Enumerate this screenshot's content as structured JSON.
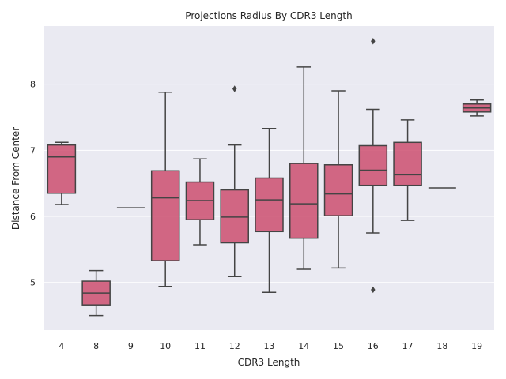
{
  "chart_data": {
    "type": "box",
    "title": "Projections Radius By CDR3 Length",
    "xlabel": "CDR3 Length",
    "ylabel": "Distance From Center",
    "ylim": [
      4.28,
      8.88
    ],
    "yticks": [
      5,
      6,
      7,
      8
    ],
    "grid": true,
    "colors": {
      "background": "#eaeaf2",
      "grid": "#ffffff",
      "box_fill": "#cc4f70",
      "box_edge": "#444444"
    },
    "categories": [
      "4",
      "8",
      "9",
      "10",
      "11",
      "12",
      "13",
      "14",
      "15",
      "16",
      "17",
      "18",
      "19"
    ],
    "boxes": [
      {
        "label": "4",
        "whislo": 6.18,
        "q1": 6.35,
        "med": 6.9,
        "q3": 7.08,
        "whishi": 7.12,
        "fliers": []
      },
      {
        "label": "8",
        "whislo": 4.5,
        "q1": 4.66,
        "med": 4.84,
        "q3": 5.02,
        "whishi": 5.18,
        "fliers": []
      },
      {
        "label": "9",
        "whislo": 6.13,
        "q1": 6.13,
        "med": 6.13,
        "q3": 6.13,
        "whishi": 6.13,
        "fliers": []
      },
      {
        "label": "10",
        "whislo": 4.94,
        "q1": 5.33,
        "med": 6.28,
        "q3": 6.69,
        "whishi": 7.88,
        "fliers": []
      },
      {
        "label": "11",
        "whislo": 5.57,
        "q1": 5.95,
        "med": 6.24,
        "q3": 6.52,
        "whishi": 6.87,
        "fliers": []
      },
      {
        "label": "12",
        "whislo": 5.09,
        "q1": 5.6,
        "med": 5.99,
        "q3": 6.4,
        "whishi": 7.08,
        "fliers": [
          7.93
        ]
      },
      {
        "label": "13",
        "whislo": 4.85,
        "q1": 5.77,
        "med": 6.25,
        "q3": 6.58,
        "whishi": 7.33,
        "fliers": []
      },
      {
        "label": "14",
        "whislo": 5.2,
        "q1": 5.67,
        "med": 6.19,
        "q3": 6.8,
        "whishi": 8.26,
        "fliers": []
      },
      {
        "label": "15",
        "whislo": 5.22,
        "q1": 6.01,
        "med": 6.34,
        "q3": 6.78,
        "whishi": 7.9,
        "fliers": []
      },
      {
        "label": "16",
        "whislo": 5.75,
        "q1": 6.47,
        "med": 6.7,
        "q3": 7.07,
        "whishi": 7.62,
        "fliers": [
          8.65,
          4.89
        ]
      },
      {
        "label": "17",
        "whislo": 5.94,
        "q1": 6.47,
        "med": 6.63,
        "q3": 7.12,
        "whishi": 7.46,
        "fliers": []
      },
      {
        "label": "18",
        "whislo": 6.43,
        "q1": 6.43,
        "med": 6.43,
        "q3": 6.43,
        "whishi": 6.43,
        "fliers": []
      },
      {
        "label": "19",
        "whislo": 7.52,
        "q1": 7.58,
        "med": 7.64,
        "q3": 7.7,
        "whishi": 7.76,
        "fliers": []
      }
    ]
  }
}
